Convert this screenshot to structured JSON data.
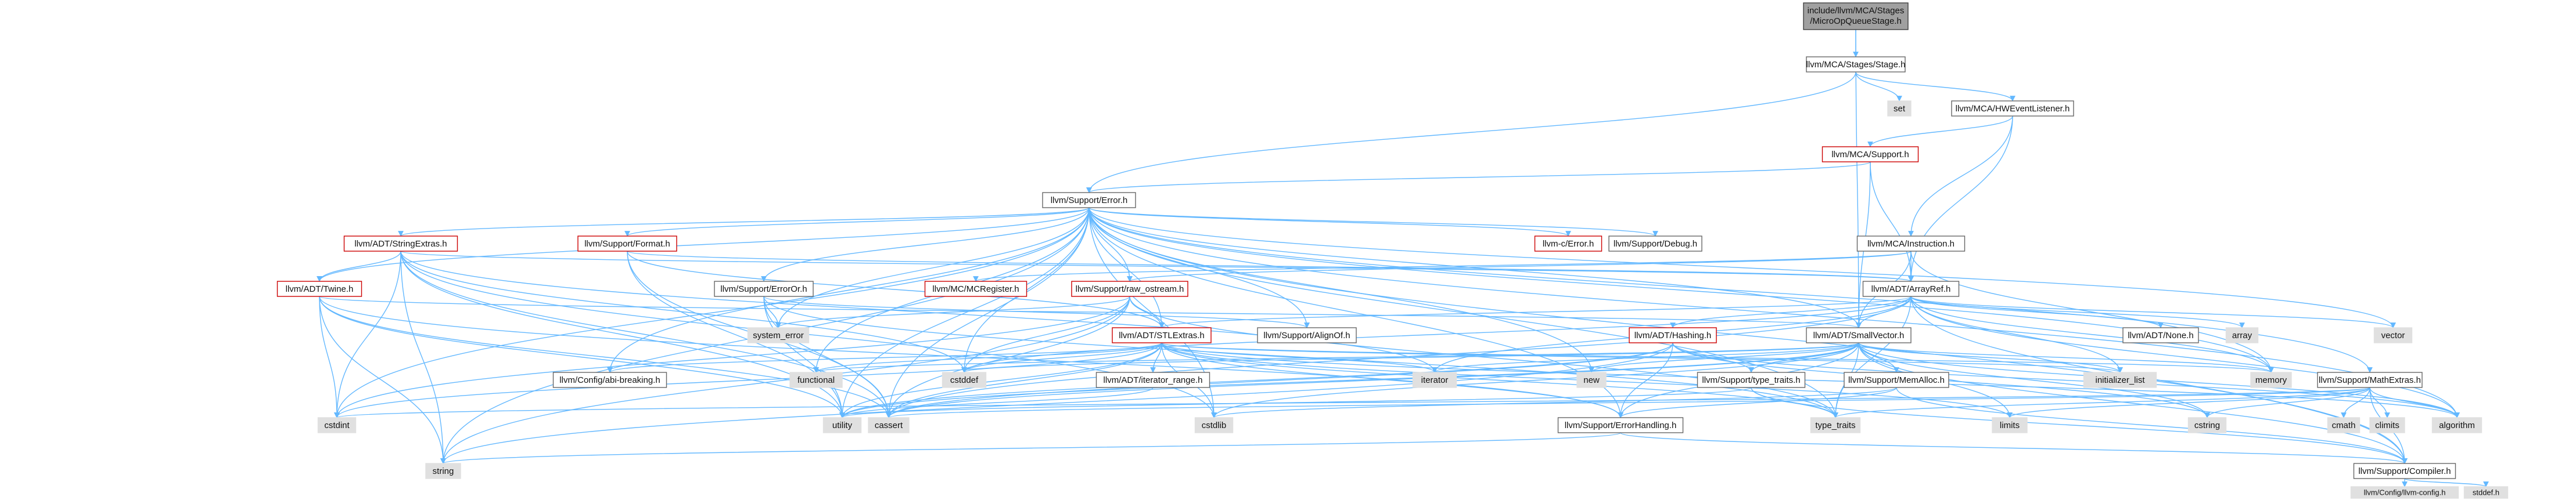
{
  "colors": {
    "edge": "#63b8ff",
    "node_border_normal": "#666666",
    "node_border_red": "#cc0000",
    "node_fill_normal": "#ffffff",
    "node_fill_system": "#e0e0e0",
    "node_fill_root": "#a0a0a0"
  },
  "nodes": [
    {
      "id": "root",
      "label": "include/llvm/MCA/Stages/MicroOpQueueStage.h",
      "lines": [
        "include/llvm/MCA/Stages",
        "/MicroOpQueueStage.h"
      ],
      "kind": "root"
    },
    {
      "id": "stage",
      "label": "llvm/MCA/Stages/Stage.h",
      "kind": "normal"
    },
    {
      "id": "set",
      "label": "set",
      "kind": "system"
    },
    {
      "id": "hwevent",
      "label": "llvm/MCA/HWEventListener.h",
      "kind": "normal"
    },
    {
      "id": "support",
      "label": "llvm/MCA/Support.h",
      "kind": "red"
    },
    {
      "id": "error",
      "label": "llvm/Support/Error.h",
      "kind": "normal"
    },
    {
      "id": "cerror",
      "label": "llvm-c/Error.h",
      "kind": "red"
    },
    {
      "id": "debug",
      "label": "llvm/Support/Debug.h",
      "kind": "normal"
    },
    {
      "id": "instruction",
      "label": "llvm/MCA/Instruction.h",
      "kind": "normal"
    },
    {
      "id": "stringextras",
      "label": "llvm/ADT/StringExtras.h",
      "kind": "red"
    },
    {
      "id": "format",
      "label": "llvm/Support/Format.h",
      "kind": "red"
    },
    {
      "id": "erroror",
      "label": "llvm/Support/ErrorOr.h",
      "kind": "normal"
    },
    {
      "id": "arrayref",
      "label": "llvm/ADT/ArrayRef.h",
      "kind": "normal"
    },
    {
      "id": "twine",
      "label": "llvm/ADT/Twine.h",
      "kind": "red"
    },
    {
      "id": "mcregister",
      "label": "llvm/MC/MCRegister.h",
      "kind": "red"
    },
    {
      "id": "rawostream",
      "label": "llvm/Support/raw_ostream.h",
      "kind": "red"
    },
    {
      "id": "systemerror",
      "label": "system_error",
      "kind": "system"
    },
    {
      "id": "stlextras",
      "label": "llvm/ADT/STLExtras.h",
      "kind": "red"
    },
    {
      "id": "alignof",
      "label": "llvm/Support/AlignOf.h",
      "kind": "normal"
    },
    {
      "id": "hashing",
      "label": "llvm/ADT/Hashing.h",
      "kind": "red"
    },
    {
      "id": "smallvector",
      "label": "llvm/ADT/SmallVector.h",
      "kind": "normal"
    },
    {
      "id": "none",
      "label": "llvm/ADT/None.h",
      "kind": "normal"
    },
    {
      "id": "array",
      "label": "array",
      "kind": "system"
    },
    {
      "id": "vector",
      "label": "vector",
      "kind": "system"
    },
    {
      "id": "abibreaking",
      "label": "llvm/Config/abi-breaking.h",
      "kind": "normal"
    },
    {
      "id": "functional",
      "label": "functional",
      "kind": "system"
    },
    {
      "id": "cstddef",
      "label": "cstddef",
      "kind": "system"
    },
    {
      "id": "iteratorrange",
      "label": "llvm/ADT/iterator_range.h",
      "kind": "normal"
    },
    {
      "id": "iterator",
      "label": "iterator",
      "kind": "system"
    },
    {
      "id": "new",
      "label": "new",
      "kind": "system"
    },
    {
      "id": "typetraitsllvm",
      "label": "llvm/Support/type_traits.h",
      "kind": "normal"
    },
    {
      "id": "memalloc",
      "label": "llvm/Support/MemAlloc.h",
      "kind": "normal"
    },
    {
      "id": "initlist",
      "label": "initializer_list",
      "kind": "system"
    },
    {
      "id": "memory",
      "label": "memory",
      "kind": "system"
    },
    {
      "id": "mathextras",
      "label": "llvm/Support/MathExtras.h",
      "kind": "normal"
    },
    {
      "id": "cstdint",
      "label": "cstdint",
      "kind": "system"
    },
    {
      "id": "utility",
      "label": "utility",
      "kind": "system"
    },
    {
      "id": "cassert",
      "label": "cassert",
      "kind": "system"
    },
    {
      "id": "cstdlib",
      "label": "cstdlib",
      "kind": "system"
    },
    {
      "id": "errorhandling",
      "label": "llvm/Support/ErrorHandling.h",
      "kind": "normal"
    },
    {
      "id": "typetraits",
      "label": "type_traits",
      "kind": "system"
    },
    {
      "id": "limits",
      "label": "limits",
      "kind": "system"
    },
    {
      "id": "cstring",
      "label": "cstring",
      "kind": "system"
    },
    {
      "id": "cmath",
      "label": "cmath",
      "kind": "system"
    },
    {
      "id": "climits",
      "label": "climits",
      "kind": "system"
    },
    {
      "id": "algorithm",
      "label": "algorithm",
      "kind": "system"
    },
    {
      "id": "string",
      "label": "string",
      "kind": "system"
    },
    {
      "id": "compiler",
      "label": "llvm/Support/Compiler.h",
      "kind": "normal"
    },
    {
      "id": "llvmconfig",
      "label": "llvm/Config/llvm-config.h",
      "kind": "system"
    },
    {
      "id": "stddef",
      "label": "stddef.h",
      "kind": "system"
    }
  ],
  "edges": [
    [
      "root",
      "stage"
    ],
    [
      "root",
      "smallvector"
    ],
    [
      "stage",
      "error"
    ],
    [
      "stage",
      "set"
    ],
    [
      "stage",
      "hwevent"
    ],
    [
      "hwevent",
      "support"
    ],
    [
      "hwevent",
      "instruction"
    ],
    [
      "hwevent",
      "arrayref"
    ],
    [
      "support",
      "error"
    ],
    [
      "support",
      "arrayref"
    ],
    [
      "support",
      "smallvector"
    ],
    [
      "error",
      "cerror"
    ],
    [
      "error",
      "debug"
    ],
    [
      "error",
      "stringextras"
    ],
    [
      "error",
      "format"
    ],
    [
      "error",
      "erroror"
    ],
    [
      "error",
      "twine"
    ],
    [
      "error",
      "rawostream"
    ],
    [
      "error",
      "systemerror"
    ],
    [
      "error",
      "stlextras"
    ],
    [
      "error",
      "alignof"
    ],
    [
      "error",
      "smallvector"
    ],
    [
      "error",
      "abibreaking"
    ],
    [
      "error",
      "functional"
    ],
    [
      "error",
      "cstddef"
    ],
    [
      "error",
      "new"
    ],
    [
      "error",
      "cstdint"
    ],
    [
      "error",
      "utility"
    ],
    [
      "error",
      "cassert"
    ],
    [
      "error",
      "cstdlib"
    ],
    [
      "error",
      "errorhandling"
    ],
    [
      "error",
      "typetraits"
    ],
    [
      "error",
      "memory"
    ],
    [
      "error",
      "vector"
    ],
    [
      "error",
      "string"
    ],
    [
      "error",
      "compiler"
    ],
    [
      "error",
      "mathextras"
    ],
    [
      "error",
      "algorithm"
    ],
    [
      "instruction",
      "arrayref"
    ],
    [
      "instruction",
      "mcregister"
    ],
    [
      "instruction",
      "smallvector"
    ],
    [
      "instruction",
      "rawostream"
    ],
    [
      "instruction",
      "memory"
    ],
    [
      "stringextras",
      "arrayref"
    ],
    [
      "stringextras",
      "twine"
    ],
    [
      "stringextras",
      "iterator"
    ],
    [
      "stringextras",
      "cstdint"
    ],
    [
      "stringextras",
      "string"
    ],
    [
      "stringextras",
      "utility"
    ],
    [
      "stringextras",
      "cassert"
    ],
    [
      "stringextras",
      "cstddef"
    ],
    [
      "stringextras",
      "cstdlib"
    ],
    [
      "format",
      "arrayref"
    ],
    [
      "format",
      "stlextras"
    ],
    [
      "format",
      "cassert"
    ],
    [
      "format",
      "utility"
    ],
    [
      "erroror",
      "alignof"
    ],
    [
      "erroror",
      "systemerror"
    ],
    [
      "erroror",
      "typetraits"
    ],
    [
      "erroror",
      "utility"
    ],
    [
      "erroror",
      "cassert"
    ],
    [
      "arrayref",
      "hashing"
    ],
    [
      "arrayref",
      "none"
    ],
    [
      "arrayref",
      "smallvector"
    ],
    [
      "arrayref",
      "stlextras"
    ],
    [
      "arrayref",
      "compiler"
    ],
    [
      "arrayref",
      "algorithm"
    ],
    [
      "arrayref",
      "array"
    ],
    [
      "arrayref",
      "cassert"
    ],
    [
      "arrayref",
      "cstddef"
    ],
    [
      "arrayref",
      "initlist"
    ],
    [
      "arrayref",
      "iterator"
    ],
    [
      "arrayref",
      "memory"
    ],
    [
      "arrayref",
      "typetraits"
    ],
    [
      "arrayref",
      "vector"
    ],
    [
      "twine",
      "smallvector"
    ],
    [
      "twine",
      "errorhandling"
    ],
    [
      "twine",
      "cassert"
    ],
    [
      "twine",
      "cstdint"
    ],
    [
      "twine",
      "string"
    ],
    [
      "twine",
      "utility"
    ],
    [
      "rawostream",
      "stlextras"
    ],
    [
      "rawostream",
      "systemerror"
    ],
    [
      "rawostream",
      "cassert"
    ],
    [
      "rawostream",
      "cstddef"
    ],
    [
      "rawostream",
      "cstdint"
    ],
    [
      "rawostream",
      "string"
    ],
    [
      "rawostream",
      "typetraits"
    ],
    [
      "stlextras",
      "abibreaking"
    ],
    [
      "stlextras",
      "functional"
    ],
    [
      "stlextras",
      "cstddef"
    ],
    [
      "stlextras",
      "iteratorrange"
    ],
    [
      "stlextras",
      "iterator"
    ],
    [
      "stlextras",
      "errorhandling"
    ],
    [
      "stlextras",
      "utility"
    ],
    [
      "stlextras",
      "cassert"
    ],
    [
      "stlextras",
      "cstdint"
    ],
    [
      "stlextras",
      "cstdlib"
    ],
    [
      "stlextras",
      "initlist"
    ],
    [
      "stlextras",
      "limits"
    ],
    [
      "stlextras",
      "memory"
    ],
    [
      "stlextras",
      "typetraits"
    ],
    [
      "stlextras",
      "algorithm"
    ],
    [
      "hashing",
      "errorhandling"
    ],
    [
      "hashing",
      "typetraitsllvm"
    ],
    [
      "hashing",
      "algorithm"
    ],
    [
      "hashing",
      "cassert"
    ],
    [
      "hashing",
      "cstring"
    ],
    [
      "hashing",
      "string"
    ],
    [
      "hashing",
      "utility"
    ],
    [
      "smallvector",
      "compiler"
    ],
    [
      "smallvector",
      "typetraitsllvm"
    ],
    [
      "smallvector",
      "algorithm"
    ],
    [
      "smallvector",
      "cassert"
    ],
    [
      "smallvector",
      "cstddef"
    ],
    [
      "smallvector",
      "cstdlib"
    ],
    [
      "smallvector",
      "cstring"
    ],
    [
      "smallvector",
      "functional"
    ],
    [
      "smallvector",
      "initlist"
    ],
    [
      "smallvector",
      "iterator"
    ],
    [
      "smallvector",
      "limits"
    ],
    [
      "smallvector",
      "memory"
    ],
    [
      "smallvector",
      "new"
    ],
    [
      "smallvector",
      "typetraits"
    ],
    [
      "smallvector",
      "utility"
    ],
    [
      "smallvector",
      "memalloc"
    ],
    [
      "smallvector",
      "errorhandling"
    ],
    [
      "iteratorrange",
      "utility"
    ],
    [
      "typetraitsllvm",
      "compiler"
    ],
    [
      "typetraitsllvm",
      "typetraits"
    ],
    [
      "typetraitsllvm",
      "utility"
    ],
    [
      "memalloc",
      "compiler"
    ],
    [
      "memalloc",
      "errorhandling"
    ],
    [
      "memalloc",
      "cstdlib"
    ],
    [
      "mathextras",
      "compiler"
    ],
    [
      "mathextras",
      "algorithm"
    ],
    [
      "mathextras",
      "cassert"
    ],
    [
      "mathextras",
      "climits"
    ],
    [
      "mathextras",
      "cmath"
    ],
    [
      "mathextras",
      "cstdint"
    ],
    [
      "mathextras",
      "cstring"
    ],
    [
      "mathextras",
      "limits"
    ],
    [
      "mathextras",
      "typetraits"
    ],
    [
      "errorhandling",
      "compiler"
    ],
    [
      "errorhandling",
      "string"
    ],
    [
      "compiler",
      "llvmconfig"
    ],
    [
      "compiler",
      "stddef"
    ]
  ]
}
